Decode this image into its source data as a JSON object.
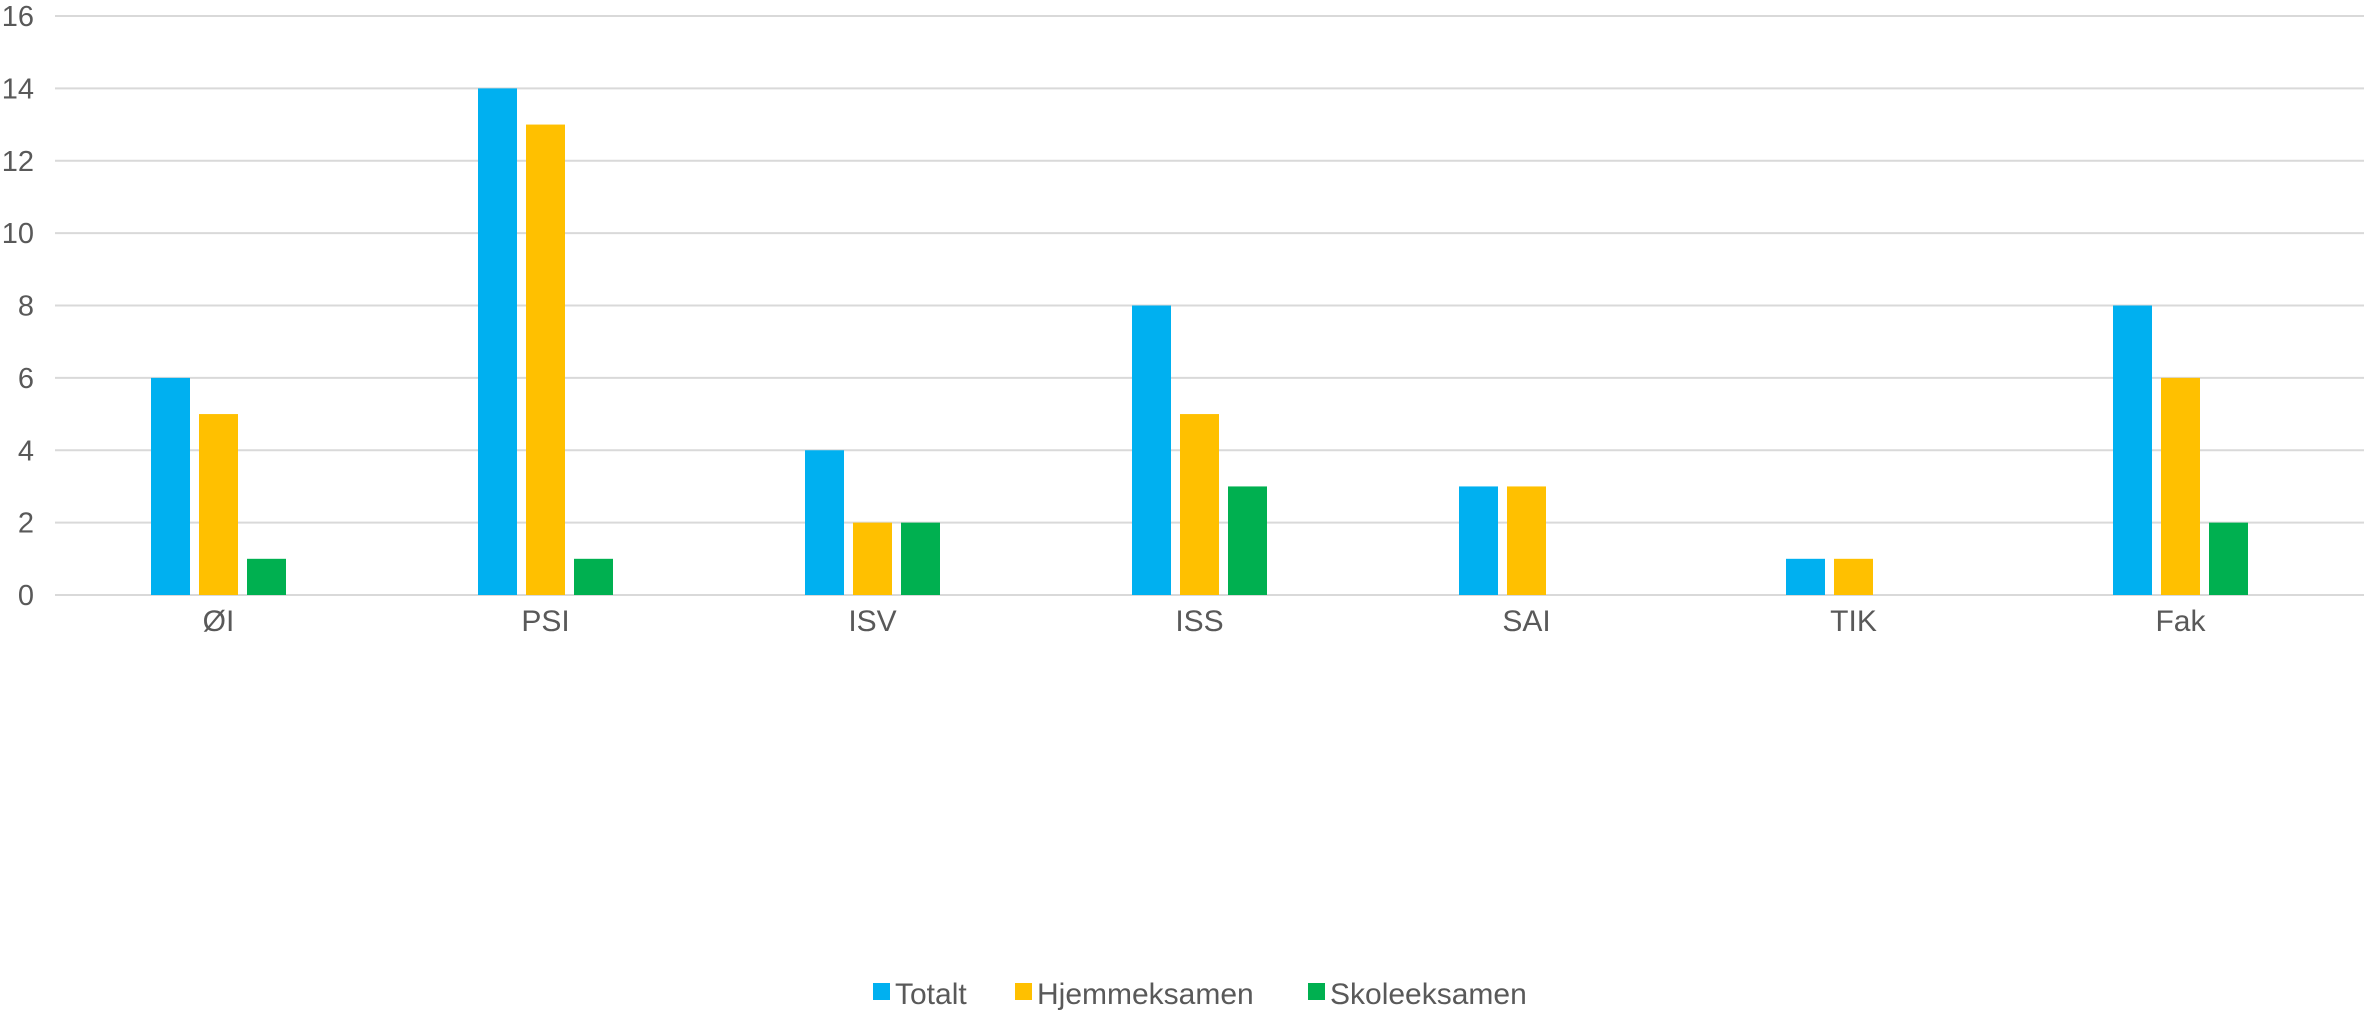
{
  "chart_data": {
    "type": "bar",
    "title": "",
    "xlabel": "",
    "ylabel": "",
    "categories": [
      "ØI",
      "PSI",
      "ISV",
      "ISS",
      "SAI",
      "TIK",
      "Fak"
    ],
    "series": [
      {
        "name": "Totalt",
        "color": "#00b0f0",
        "values": [
          6,
          14,
          4,
          8,
          3,
          1,
          8
        ]
      },
      {
        "name": "Hjemmeksamen",
        "color": "#ffc000",
        "values": [
          5,
          13,
          2,
          5,
          3,
          1,
          6
        ]
      },
      {
        "name": "Skoleeksamen",
        "color": "#00b050",
        "values": [
          1,
          1,
          2,
          3,
          0,
          0,
          2
        ]
      }
    ],
    "ylim": [
      0,
      16
    ],
    "yticks": [
      0,
      2,
      4,
      6,
      8,
      10,
      12,
      14,
      16
    ],
    "grid": true,
    "legend_position": "bottom"
  }
}
